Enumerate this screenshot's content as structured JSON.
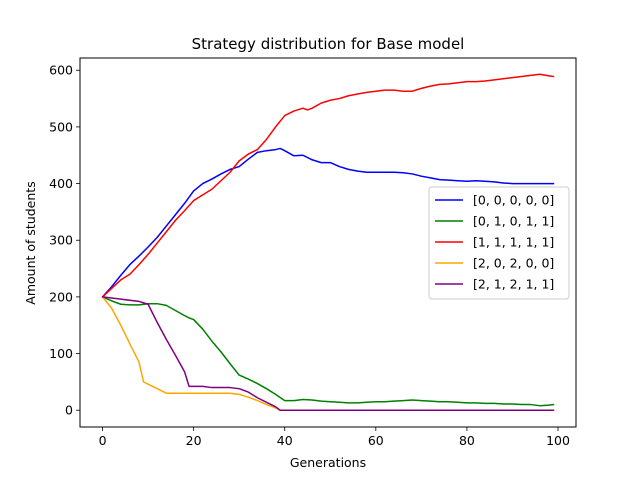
{
  "chart_data": {
    "type": "line",
    "title": "Strategy distribution for Base model",
    "xlabel": "Generations",
    "ylabel": "Amount of students",
    "xlim": [
      -4.95,
      103.95
    ],
    "ylim": [
      -29.6,
      621.6
    ],
    "xticks": [
      0,
      20,
      40,
      60,
      80,
      100
    ],
    "yticks": [
      0,
      100,
      200,
      300,
      400,
      500,
      600
    ],
    "grid": false,
    "legend_position": "center-right",
    "series": [
      {
        "name": "[0, 0, 0, 0, 0]",
        "color": "#0000ff",
        "x": [
          0,
          2,
          4,
          6,
          8,
          10,
          12,
          14,
          16,
          18,
          20,
          22,
          24,
          26,
          28,
          30,
          32,
          34,
          36,
          38,
          39,
          40,
          42,
          44,
          46,
          48,
          50,
          52,
          54,
          56,
          58,
          60,
          62,
          64,
          66,
          68,
          70,
          72,
          74,
          76,
          78,
          80,
          82,
          84,
          86,
          88,
          90,
          92,
          94,
          96,
          98,
          99
        ],
        "y": [
          200,
          218,
          238,
          257,
          272,
          288,
          305,
          325,
          345,
          365,
          387,
          400,
          408,
          417,
          425,
          430,
          443,
          455,
          458,
          460,
          462,
          458,
          449,
          450,
          442,
          437,
          437,
          430,
          425,
          422,
          420,
          420,
          420,
          420,
          419,
          417,
          413,
          410,
          407,
          406,
          405,
          404,
          405,
          404,
          403,
          401,
          400,
          400,
          400,
          400,
          400,
          400
        ]
      },
      {
        "name": "[0, 1, 0, 1, 1]",
        "color": "#008000",
        "x": [
          0,
          2,
          4,
          6,
          8,
          10,
          12,
          14,
          16,
          18,
          19,
          20,
          22,
          24,
          26,
          28,
          30,
          32,
          34,
          36,
          38,
          40,
          42,
          44,
          46,
          48,
          50,
          52,
          54,
          56,
          58,
          60,
          62,
          64,
          66,
          68,
          70,
          72,
          74,
          76,
          78,
          80,
          82,
          84,
          86,
          88,
          90,
          92,
          94,
          96,
          98,
          99
        ],
        "y": [
          200,
          193,
          187,
          186,
          186,
          188,
          188,
          185,
          176,
          167,
          163,
          160,
          143,
          122,
          103,
          82,
          62,
          55,
          47,
          38,
          28,
          17,
          17,
          19,
          18,
          16,
          15,
          14,
          13,
          13,
          14,
          15,
          15,
          16,
          17,
          18,
          17,
          16,
          15,
          15,
          14,
          13,
          13,
          12,
          12,
          11,
          11,
          10,
          10,
          8,
          9,
          10
        ]
      },
      {
        "name": "[1, 1, 1, 1, 1]",
        "color": "#ff0000",
        "x": [
          0,
          2,
          4,
          6,
          8,
          10,
          12,
          14,
          16,
          18,
          20,
          22,
          24,
          26,
          28,
          30,
          32,
          34,
          36,
          38,
          40,
          42,
          44,
          45,
          46,
          48,
          50,
          52,
          54,
          56,
          58,
          60,
          62,
          64,
          66,
          68,
          70,
          72,
          74,
          76,
          78,
          80,
          82,
          84,
          86,
          88,
          90,
          92,
          94,
          96,
          98,
          99
        ],
        "y": [
          200,
          215,
          230,
          240,
          257,
          275,
          295,
          315,
          335,
          352,
          370,
          380,
          390,
          405,
          420,
          440,
          452,
          460,
          478,
          500,
          520,
          528,
          533,
          530,
          533,
          542,
          547,
          550,
          555,
          558,
          561,
          563,
          565,
          565,
          563,
          563,
          568,
          572,
          575,
          576,
          578,
          580,
          580,
          581,
          583,
          585,
          587,
          589,
          591,
          593,
          590,
          589
        ]
      },
      {
        "name": "[2, 0, 2, 0, 0]",
        "color": "#ffa500",
        "x": [
          0,
          2,
          4,
          6,
          8,
          9,
          10,
          12,
          14,
          16,
          18,
          20,
          22,
          24,
          26,
          28,
          30,
          32,
          34,
          36,
          38,
          39,
          40,
          45,
          50,
          55,
          60,
          65,
          70,
          75,
          80,
          85,
          90,
          95,
          99
        ],
        "y": [
          200,
          180,
          150,
          117,
          85,
          50,
          46,
          38,
          30,
          30,
          30,
          30,
          30,
          30,
          30,
          30,
          28,
          23,
          17,
          10,
          4,
          0,
          0,
          0,
          0,
          0,
          0,
          0,
          0,
          0,
          0,
          0,
          0,
          0,
          0
        ]
      },
      {
        "name": "[2, 1, 2, 1, 1]",
        "color": "#800080",
        "x": [
          0,
          2,
          4,
          6,
          8,
          10,
          12,
          14,
          16,
          18,
          19,
          20,
          22,
          24,
          26,
          28,
          30,
          32,
          34,
          36,
          38,
          39,
          40,
          45,
          50,
          55,
          60,
          65,
          70,
          75,
          80,
          85,
          90,
          95,
          99
        ],
        "y": [
          200,
          198,
          196,
          194,
          192,
          187,
          155,
          125,
          97,
          68,
          42,
          42,
          42,
          40,
          40,
          40,
          38,
          32,
          22,
          14,
          6,
          0,
          0,
          0,
          0,
          0,
          0,
          0,
          0,
          0,
          0,
          0,
          0,
          0,
          0
        ]
      }
    ]
  }
}
